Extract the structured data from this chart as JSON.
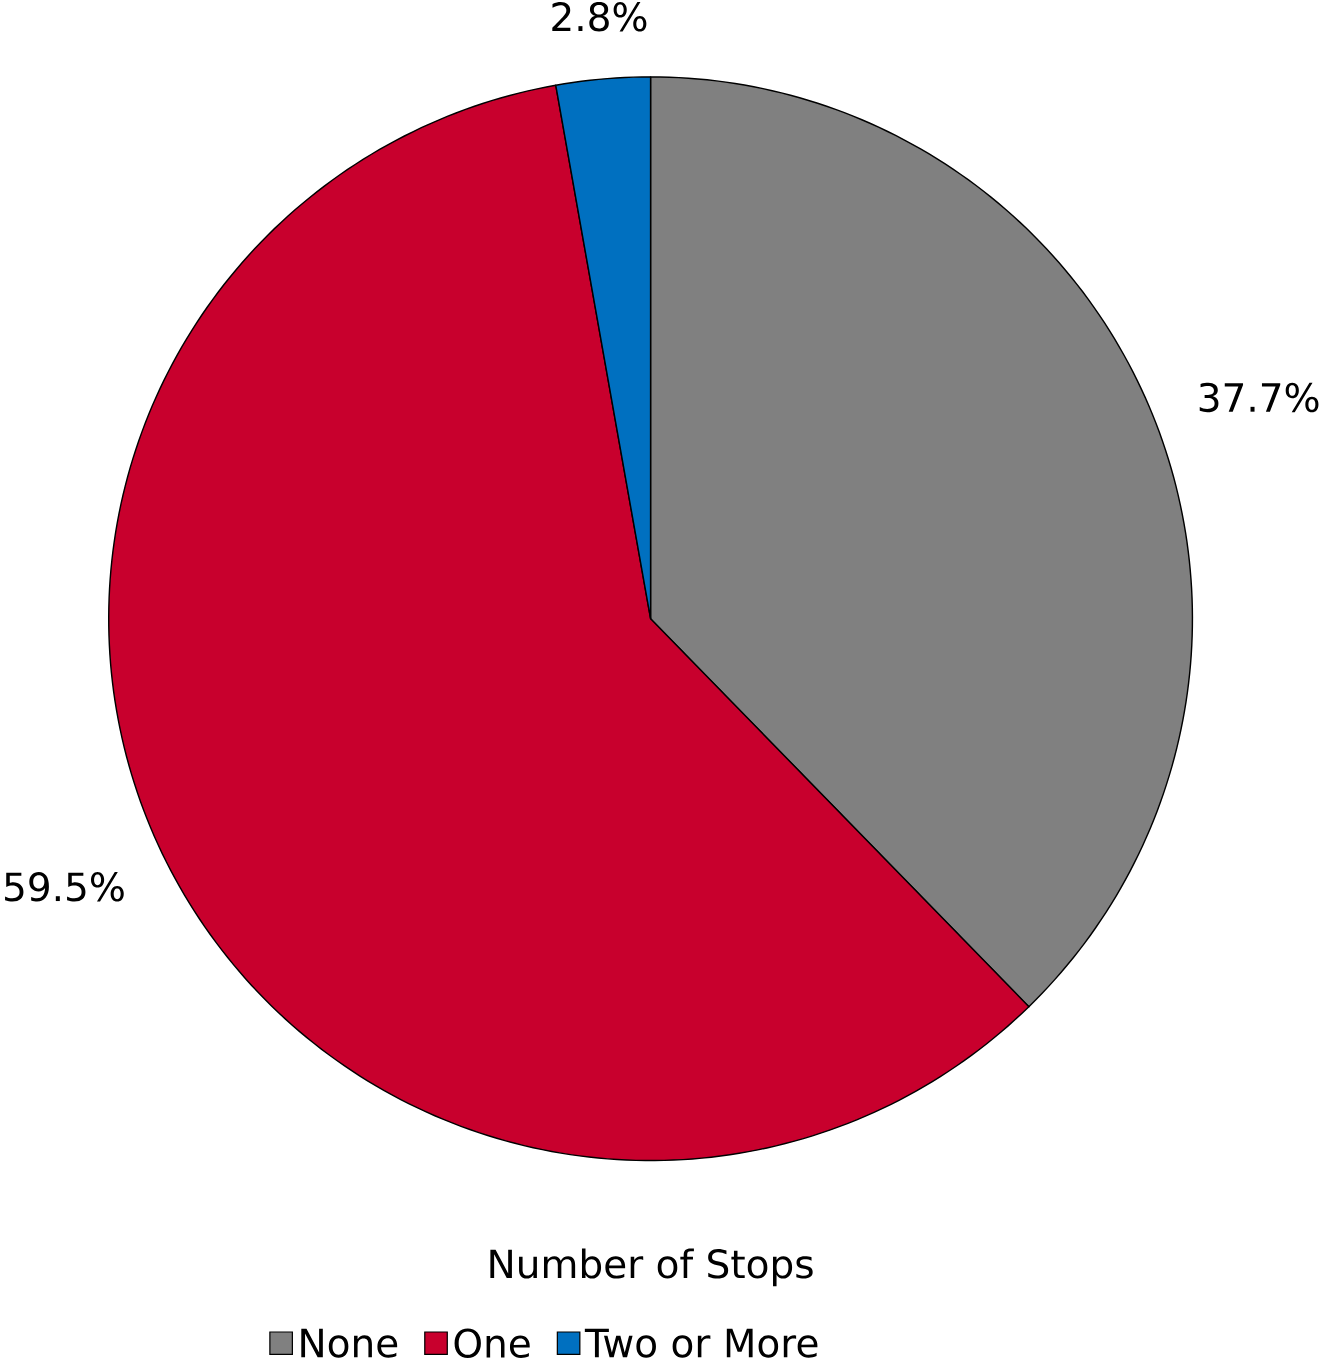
{
  "chart_data": {
    "type": "pie",
    "legend_title": "Number of Stops",
    "legend": "bottom",
    "categories": [
      "None",
      "One",
      "Two or More"
    ],
    "values": [
      37.7,
      59.5,
      2.8
    ],
    "value_labels": [
      "37.7%",
      "59.5%",
      "2.8%"
    ],
    "colors": [
      "#808080",
      "#c8002d",
      "#0070c0"
    ]
  }
}
